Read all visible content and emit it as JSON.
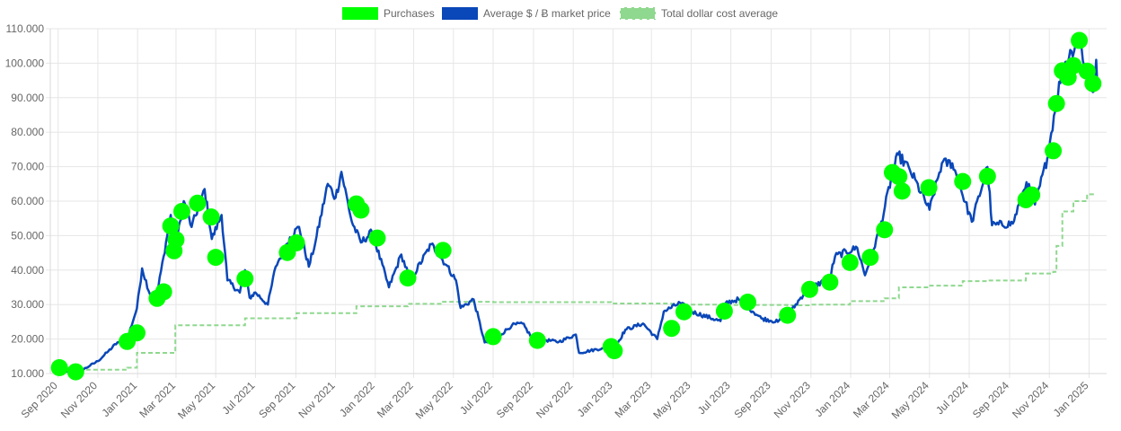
{
  "chart_data": {
    "type": "line",
    "title": "",
    "xlabel": "",
    "ylabel": "",
    "ylim": [
      10000,
      110000
    ],
    "y_ticks": [
      10000,
      20000,
      30000,
      40000,
      50000,
      60000,
      70000,
      80000,
      90000,
      100000,
      110000
    ],
    "y_tick_labels": [
      "10.000",
      "20.000",
      "30.000",
      "40.000",
      "50.000",
      "60.000",
      "70.000",
      "80.000",
      "90.000",
      "100.000",
      "110.000"
    ],
    "x_range": [
      "2020-08-20",
      "2025-01-28"
    ],
    "x_ticks": [
      "2020-09-01",
      "2020-11-01",
      "2021-01-01",
      "2021-03-01",
      "2021-05-01",
      "2021-07-01",
      "2021-09-01",
      "2021-11-01",
      "2022-01-01",
      "2022-03-01",
      "2022-05-01",
      "2022-07-01",
      "2022-09-01",
      "2022-11-01",
      "2023-01-01",
      "2023-03-01",
      "2023-05-01",
      "2023-07-01",
      "2023-09-01",
      "2023-11-01",
      "2024-01-01",
      "2024-03-01",
      "2024-05-01",
      "2024-07-01",
      "2024-09-01",
      "2024-11-01",
      "2025-01-01"
    ],
    "x_tick_labels": [
      "Sep 2020",
      "Nov 2020",
      "Jan 2021",
      "Mar 2021",
      "May 2021",
      "Jul 2021",
      "Sep 2021",
      "Nov 2021",
      "Jan 2022",
      "Mar 2022",
      "May 2022",
      "Jul 2022",
      "Sep 2022",
      "Nov 2022",
      "Jan 2023",
      "Mar 2023",
      "May 2023",
      "Jul 2023",
      "Sep 2023",
      "Nov 2023",
      "Jan 2024",
      "Mar 2024",
      "May 2024",
      "Jul 2024",
      "Sep 2024",
      "Nov 2024",
      "Jan 2025"
    ],
    "grid": true,
    "legend": "top",
    "series": [
      {
        "name": "Purchases",
        "kind": "scatter",
        "color": "#00ff00",
        "points": [
          [
            "2020-09-03",
            11700
          ],
          [
            "2020-09-28",
            10500
          ],
          [
            "2020-12-16",
            19300
          ],
          [
            "2020-12-31",
            21800
          ],
          [
            "2021-01-31",
            31800
          ],
          [
            "2021-02-10",
            33700
          ],
          [
            "2021-02-21",
            52800
          ],
          [
            "2021-02-26",
            45600
          ],
          [
            "2021-03-01",
            48800
          ],
          [
            "2021-03-10",
            57000
          ],
          [
            "2021-04-03",
            59400
          ],
          [
            "2021-04-24",
            55400
          ],
          [
            "2021-05-01",
            43700
          ],
          [
            "2021-06-15",
            37500
          ],
          [
            "2021-08-19",
            45100
          ],
          [
            "2021-09-02",
            47900
          ],
          [
            "2021-12-03",
            59200
          ],
          [
            "2021-12-10",
            57400
          ],
          [
            "2022-01-04",
            49300
          ],
          [
            "2022-02-20",
            37700
          ],
          [
            "2022-04-15",
            45700
          ],
          [
            "2022-07-01",
            20700
          ],
          [
            "2022-09-07",
            19600
          ],
          [
            "2022-12-29",
            17800
          ],
          [
            "2023-01-03",
            16600
          ],
          [
            "2023-04-01",
            23100
          ],
          [
            "2023-04-20",
            27900
          ],
          [
            "2023-06-21",
            28100
          ],
          [
            "2023-07-27",
            30700
          ],
          [
            "2023-09-26",
            26900
          ],
          [
            "2023-10-30",
            34400
          ],
          [
            "2023-11-30",
            36500
          ],
          [
            "2023-12-31",
            42200
          ],
          [
            "2024-01-31",
            43700
          ],
          [
            "2024-02-22",
            51700
          ],
          [
            "2024-03-05",
            68300
          ],
          [
            "2024-03-15",
            67100
          ],
          [
            "2024-03-20",
            62900
          ],
          [
            "2024-04-30",
            63900
          ],
          [
            "2024-06-21",
            65700
          ],
          [
            "2024-07-29",
            67200
          ],
          [
            "2024-09-26",
            60400
          ],
          [
            "2024-10-05",
            61800
          ],
          [
            "2024-11-07",
            74600
          ],
          [
            "2024-11-12",
            88300
          ],
          [
            "2024-11-21",
            97800
          ],
          [
            "2024-11-30",
            95900
          ],
          [
            "2024-12-08",
            99300
          ],
          [
            "2024-12-17",
            106600
          ],
          [
            "2024-12-29",
            97700
          ],
          [
            "2025-01-07",
            94100
          ]
        ]
      },
      {
        "name": "Average $ / Ƀ market price",
        "kind": "line",
        "color": "#0a47b8",
        "points": [
          [
            "2020-08-25",
            11600
          ],
          [
            "2020-09-05",
            10300
          ],
          [
            "2020-09-20",
            10500
          ],
          [
            "2020-10-05",
            10700
          ],
          [
            "2020-10-20",
            12300
          ],
          [
            "2020-11-01",
            13600
          ],
          [
            "2020-11-15",
            16100
          ],
          [
            "2020-12-01",
            19000
          ],
          [
            "2020-12-15",
            19400
          ],
          [
            "2020-12-31",
            28900
          ],
          [
            "2021-01-08",
            40500
          ],
          [
            "2021-01-20",
            33000
          ],
          [
            "2021-01-31",
            33000
          ],
          [
            "2021-02-10",
            44000
          ],
          [
            "2021-02-21",
            56000
          ],
          [
            "2021-02-28",
            46000
          ],
          [
            "2021-03-13",
            60000
          ],
          [
            "2021-03-25",
            52500
          ],
          [
            "2021-04-14",
            63500
          ],
          [
            "2021-04-25",
            49000
          ],
          [
            "2021-05-10",
            56000
          ],
          [
            "2021-05-19",
            37000
          ],
          [
            "2021-06-07",
            33500
          ],
          [
            "2021-06-15",
            40000
          ],
          [
            "2021-06-22",
            32000
          ],
          [
            "2021-07-01",
            33500
          ],
          [
            "2021-07-20",
            30000
          ],
          [
            "2021-08-01",
            41000
          ],
          [
            "2021-08-23",
            49500
          ],
          [
            "2021-09-06",
            52500
          ],
          [
            "2021-09-21",
            41000
          ],
          [
            "2021-10-01",
            48000
          ],
          [
            "2021-10-20",
            65000
          ],
          [
            "2021-11-01",
            61000
          ],
          [
            "2021-11-10",
            68500
          ],
          [
            "2021-11-26",
            54000
          ],
          [
            "2021-12-10",
            48000
          ],
          [
            "2021-12-27",
            51000
          ],
          [
            "2022-01-22",
            35000
          ],
          [
            "2022-02-10",
            44500
          ],
          [
            "2022-02-24",
            37000
          ],
          [
            "2022-03-28",
            47500
          ],
          [
            "2022-04-20",
            41500
          ],
          [
            "2022-05-05",
            37000
          ],
          [
            "2022-05-12",
            29000
          ],
          [
            "2022-06-01",
            31500
          ],
          [
            "2022-06-18",
            19000
          ],
          [
            "2022-07-01",
            19500
          ],
          [
            "2022-07-30",
            24000
          ],
          [
            "2022-08-15",
            24500
          ],
          [
            "2022-08-31",
            20000
          ],
          [
            "2022-09-15",
            19800
          ],
          [
            "2022-10-10",
            19200
          ],
          [
            "2022-11-05",
            21300
          ],
          [
            "2022-11-10",
            16000
          ],
          [
            "2022-12-15",
            17300
          ],
          [
            "2023-01-01",
            16600
          ],
          [
            "2023-01-20",
            22700
          ],
          [
            "2023-02-16",
            24500
          ],
          [
            "2023-03-10",
            20000
          ],
          [
            "2023-03-20",
            28000
          ],
          [
            "2023-04-14",
            30500
          ],
          [
            "2023-05-01",
            28000
          ],
          [
            "2023-06-15",
            25200
          ],
          [
            "2023-06-23",
            30500
          ],
          [
            "2023-07-13",
            31500
          ],
          [
            "2023-08-17",
            26000
          ],
          [
            "2023-09-11",
            25000
          ],
          [
            "2023-10-01",
            27900
          ],
          [
            "2023-10-24",
            34000
          ],
          [
            "2023-11-30",
            37800
          ],
          [
            "2023-12-08",
            44000
          ],
          [
            "2024-01-11",
            46500
          ],
          [
            "2024-01-23",
            38500
          ],
          [
            "2024-02-15",
            52000
          ],
          [
            "2024-03-05",
            68000
          ],
          [
            "2024-03-14",
            73500
          ],
          [
            "2024-04-01",
            69000
          ],
          [
            "2024-05-01",
            57500
          ],
          [
            "2024-05-20",
            71000
          ],
          [
            "2024-06-05",
            71000
          ],
          [
            "2024-07-05",
            54000
          ],
          [
            "2024-07-29",
            69900
          ],
          [
            "2024-08-05",
            53000
          ],
          [
            "2024-09-06",
            53500
          ],
          [
            "2024-09-27",
            65500
          ],
          [
            "2024-10-10",
            59000
          ],
          [
            "2024-10-29",
            72500
          ],
          [
            "2024-11-12",
            89500
          ],
          [
            "2024-11-22",
            99000
          ],
          [
            "2024-12-05",
            103500
          ],
          [
            "2024-12-17",
            107000
          ],
          [
            "2025-01-01",
            94000
          ],
          [
            "2025-01-09",
            92000
          ],
          [
            "2025-01-12",
            101000
          ],
          [
            "2025-01-14",
            92500
          ]
        ]
      },
      {
        "name": "Total dollar cost average",
        "kind": "step",
        "color": "#8fd88f",
        "points": [
          [
            "2020-09-03",
            11700
          ],
          [
            "2020-09-28",
            11100
          ],
          [
            "2020-12-16",
            11700
          ],
          [
            "2020-12-31",
            16000
          ],
          [
            "2021-02-28",
            24000
          ],
          [
            "2021-06-15",
            26000
          ],
          [
            "2021-09-02",
            27500
          ],
          [
            "2021-12-03",
            29500
          ],
          [
            "2022-02-20",
            30200
          ],
          [
            "2022-04-15",
            30800
          ],
          [
            "2022-07-01",
            30700
          ],
          [
            "2022-12-29",
            30300
          ],
          [
            "2023-04-01",
            30000
          ],
          [
            "2023-06-21",
            29900
          ],
          [
            "2023-09-26",
            29800
          ],
          [
            "2023-10-30",
            30000
          ],
          [
            "2023-12-31",
            31000
          ],
          [
            "2024-02-22",
            31800
          ],
          [
            "2024-03-15",
            35000
          ],
          [
            "2024-04-30",
            35500
          ],
          [
            "2024-06-21",
            36800
          ],
          [
            "2024-07-29",
            37000
          ],
          [
            "2024-09-26",
            39000
          ],
          [
            "2024-11-07",
            39500
          ],
          [
            "2024-11-12",
            47000
          ],
          [
            "2024-11-21",
            57000
          ],
          [
            "2024-12-08",
            60000
          ],
          [
            "2024-12-29",
            62000
          ],
          [
            "2025-01-07",
            62500
          ]
        ]
      }
    ]
  }
}
